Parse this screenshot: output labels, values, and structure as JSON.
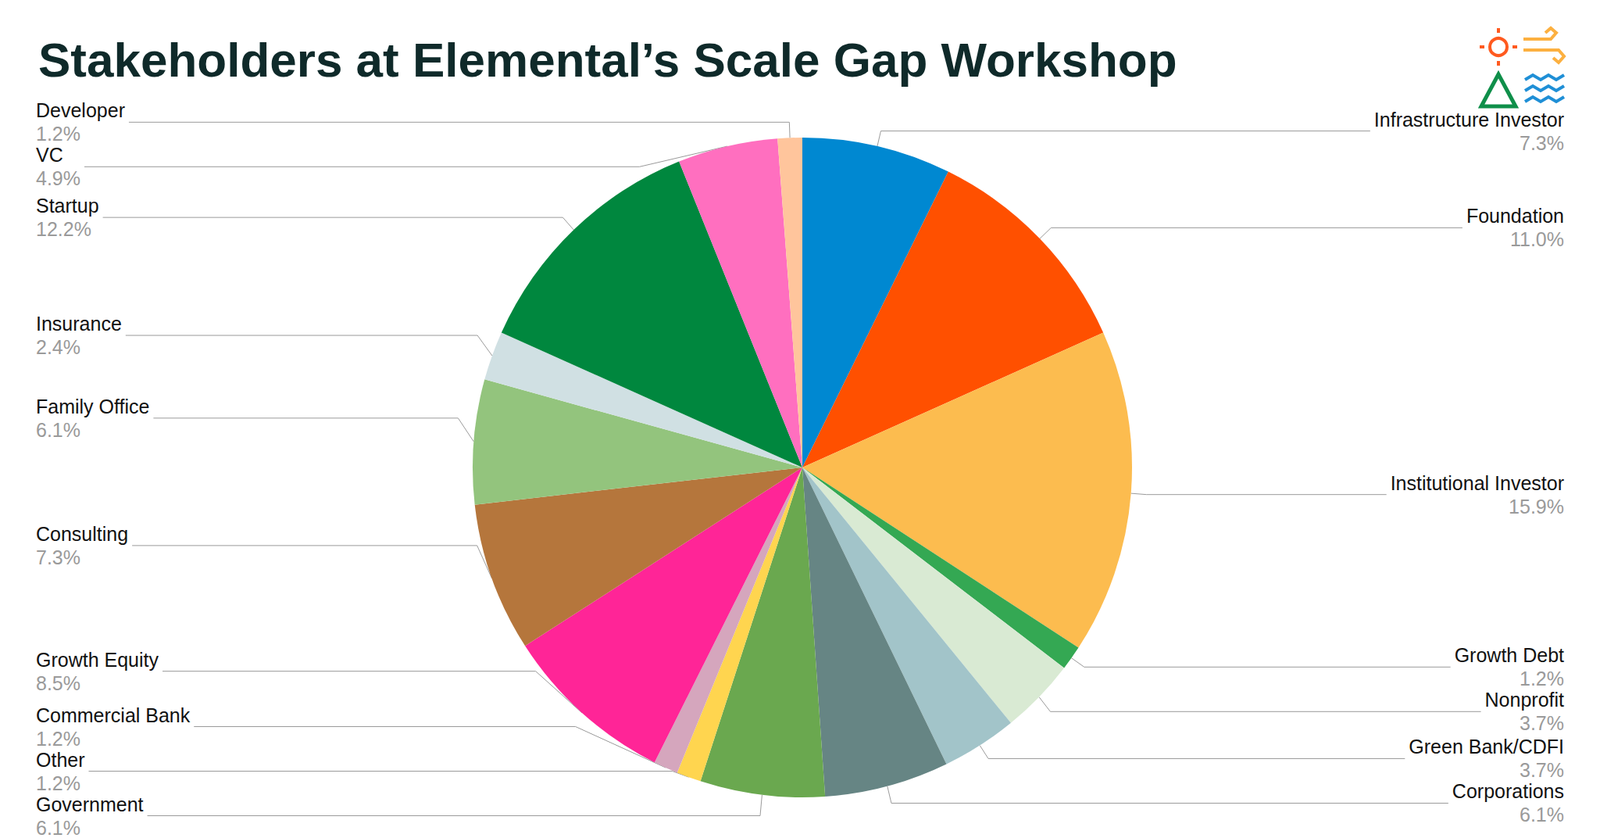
{
  "chart_data": {
    "type": "pie",
    "title": "Stakeholders at Elemental’s Scale Gap Workshop",
    "categories": [
      "Infrastructure Investor",
      "Foundation",
      "Institutional Investor",
      "Growth Debt",
      "Nonprofit",
      "Green Bank/CDFI",
      "Corporations",
      "Government",
      "Other",
      "Commercial Bank",
      "Growth Equity",
      "Consulting",
      "Family Office",
      "Insurance",
      "Startup",
      "VC",
      "Developer"
    ],
    "values": [
      7.3,
      11.0,
      15.9,
      1.2,
      3.7,
      3.7,
      6.1,
      6.1,
      1.2,
      1.2,
      8.5,
      7.3,
      6.1,
      2.4,
      12.2,
      4.9,
      1.2
    ],
    "value_labels": [
      "7.3%",
      "11.0%",
      "15.9%",
      "1.2%",
      "3.7%",
      "3.7%",
      "6.1%",
      "6.1%",
      "1.2%",
      "1.2%",
      "8.5%",
      "7.3%",
      "6.1%",
      "2.4%",
      "12.2%",
      "4.9%",
      "1.2%"
    ],
    "colors": [
      "#0088d1",
      "#ff5000",
      "#fcbc4f",
      "#34a853",
      "#d9ead3",
      "#a2c4c9",
      "#668584",
      "#6aa84f",
      "#ffd54f",
      "#d5a6bd",
      "#ff2597",
      "#b5763c",
      "#93c47d",
      "#d0e0e3",
      "#00873e",
      "#ff6fbf",
      "#ffc59c"
    ],
    "data_labels": true
  }
}
